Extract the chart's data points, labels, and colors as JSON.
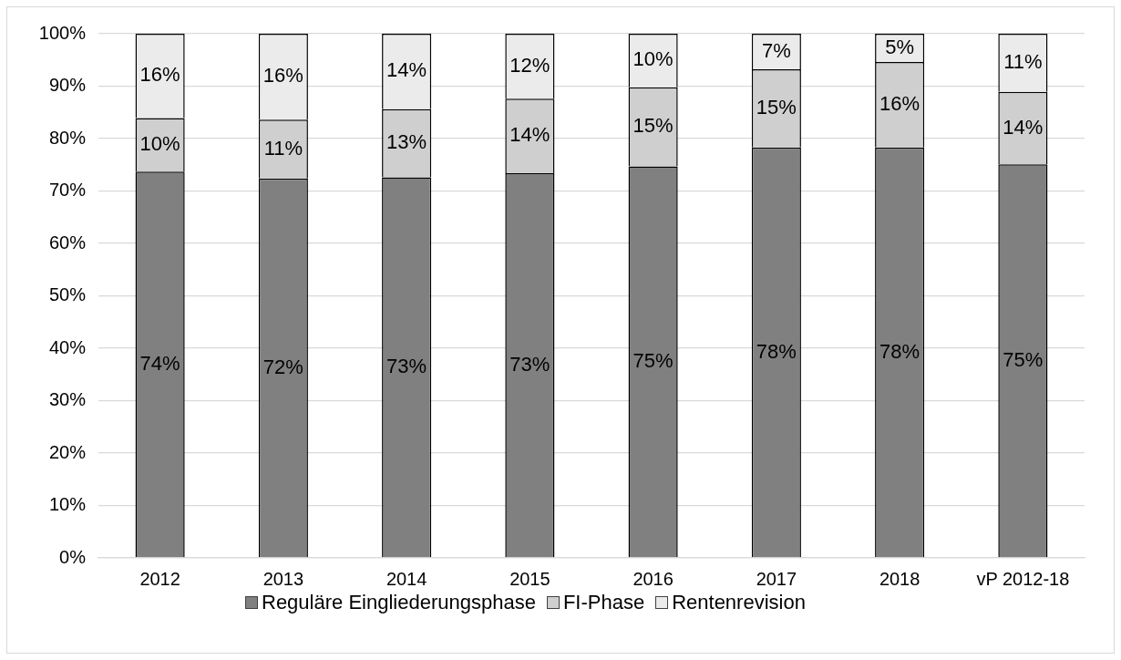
{
  "chart_data": {
    "type": "bar",
    "stacked": true,
    "categories": [
      "2012",
      "2013",
      "2014",
      "2015",
      "2016",
      "2017",
      "2018",
      "vP 2012-18"
    ],
    "series": [
      {
        "name": "Reguläre Eingliederungsphase",
        "color": "#808080",
        "values": [
          73.7,
          72.4,
          72.6,
          73.4,
          74.7,
          78.3,
          78.3,
          75.1
        ],
        "value_labels": [
          "74%",
          "72%",
          "73%",
          "73%",
          "75%",
          "78%",
          "78%",
          "75%"
        ]
      },
      {
        "name": "FI-Phase",
        "color": "#cfcfcf",
        "values": [
          10.2,
          11.2,
          13.0,
          14.2,
          15.1,
          14.9,
          16.3,
          13.8
        ],
        "value_labels": [
          "10%",
          "11%",
          "13%",
          "14%",
          "15%",
          "15%",
          "16%",
          "14%"
        ]
      },
      {
        "name": "Rentenrevision",
        "color": "#ebebeb",
        "values": [
          16.1,
          16.4,
          14.4,
          12.4,
          10.2,
          6.8,
          5.4,
          11.1
        ],
        "value_labels": [
          "16%",
          "16%",
          "14%",
          "12%",
          "10%",
          "7%",
          "5%",
          "11%"
        ]
      }
    ],
    "ylim": [
      0,
      100
    ],
    "yticks": [
      {
        "value": 0,
        "label": "0%"
      },
      {
        "value": 10,
        "label": "10%"
      },
      {
        "value": 20,
        "label": "20%"
      },
      {
        "value": 30,
        "label": "30%"
      },
      {
        "value": 40,
        "label": "40%"
      },
      {
        "value": 50,
        "label": "50%"
      },
      {
        "value": 60,
        "label": "60%"
      },
      {
        "value": 70,
        "label": "70%"
      },
      {
        "value": 80,
        "label": "80%"
      },
      {
        "value": 90,
        "label": "90%"
      },
      {
        "value": 100,
        "label": "100%"
      }
    ],
    "grid": "y",
    "legend": "bottom"
  }
}
